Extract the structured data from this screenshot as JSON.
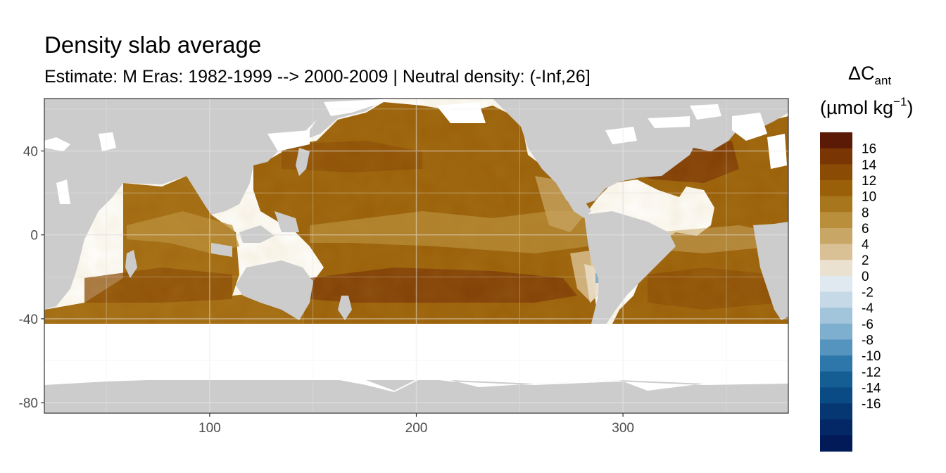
{
  "chart_data": {
    "type": "heatmap",
    "title": "Density slab average",
    "subtitle": "Estimate: M Eras: 1982-1999 --> 2000-2009 | Neutral density: (-Inf,26]",
    "xlabel": "",
    "ylabel": "",
    "xlim": [
      20,
      380
    ],
    "ylim": [
      -85,
      65
    ],
    "x_ticks": [
      100,
      200,
      300
    ],
    "y_ticks": [
      40,
      0,
      -40,
      -80
    ],
    "grid": true,
    "legend": {
      "position": "right",
      "title_main": "ΔC",
      "title_sub": "ant",
      "unit_prefix": "(µmol kg",
      "unit_exp": "−1",
      "unit_suffix": ")",
      "breaks": [
        16,
        14,
        12,
        10,
        8,
        6,
        4,
        2,
        0,
        -2,
        -4,
        -6,
        -8,
        -10,
        -12,
        -14,
        -16
      ],
      "colors": [
        "#5a1a05",
        "#7a3505",
        "#8a4b05",
        "#9a6009",
        "#a8761c",
        "#b98f3c",
        "#c8a665",
        "#d9c195",
        "#ebe1d0",
        "#dfe9ef",
        "#c5d9e6",
        "#a3c5dc",
        "#7fafce",
        "#5594bf",
        "#2e77aa",
        "#145e94",
        "#0a4a85",
        "#063773",
        "#042866",
        "#021a57"
      ]
    },
    "regions": {
      "land": "#cccccc",
      "no_data": "#ffffff"
    }
  }
}
